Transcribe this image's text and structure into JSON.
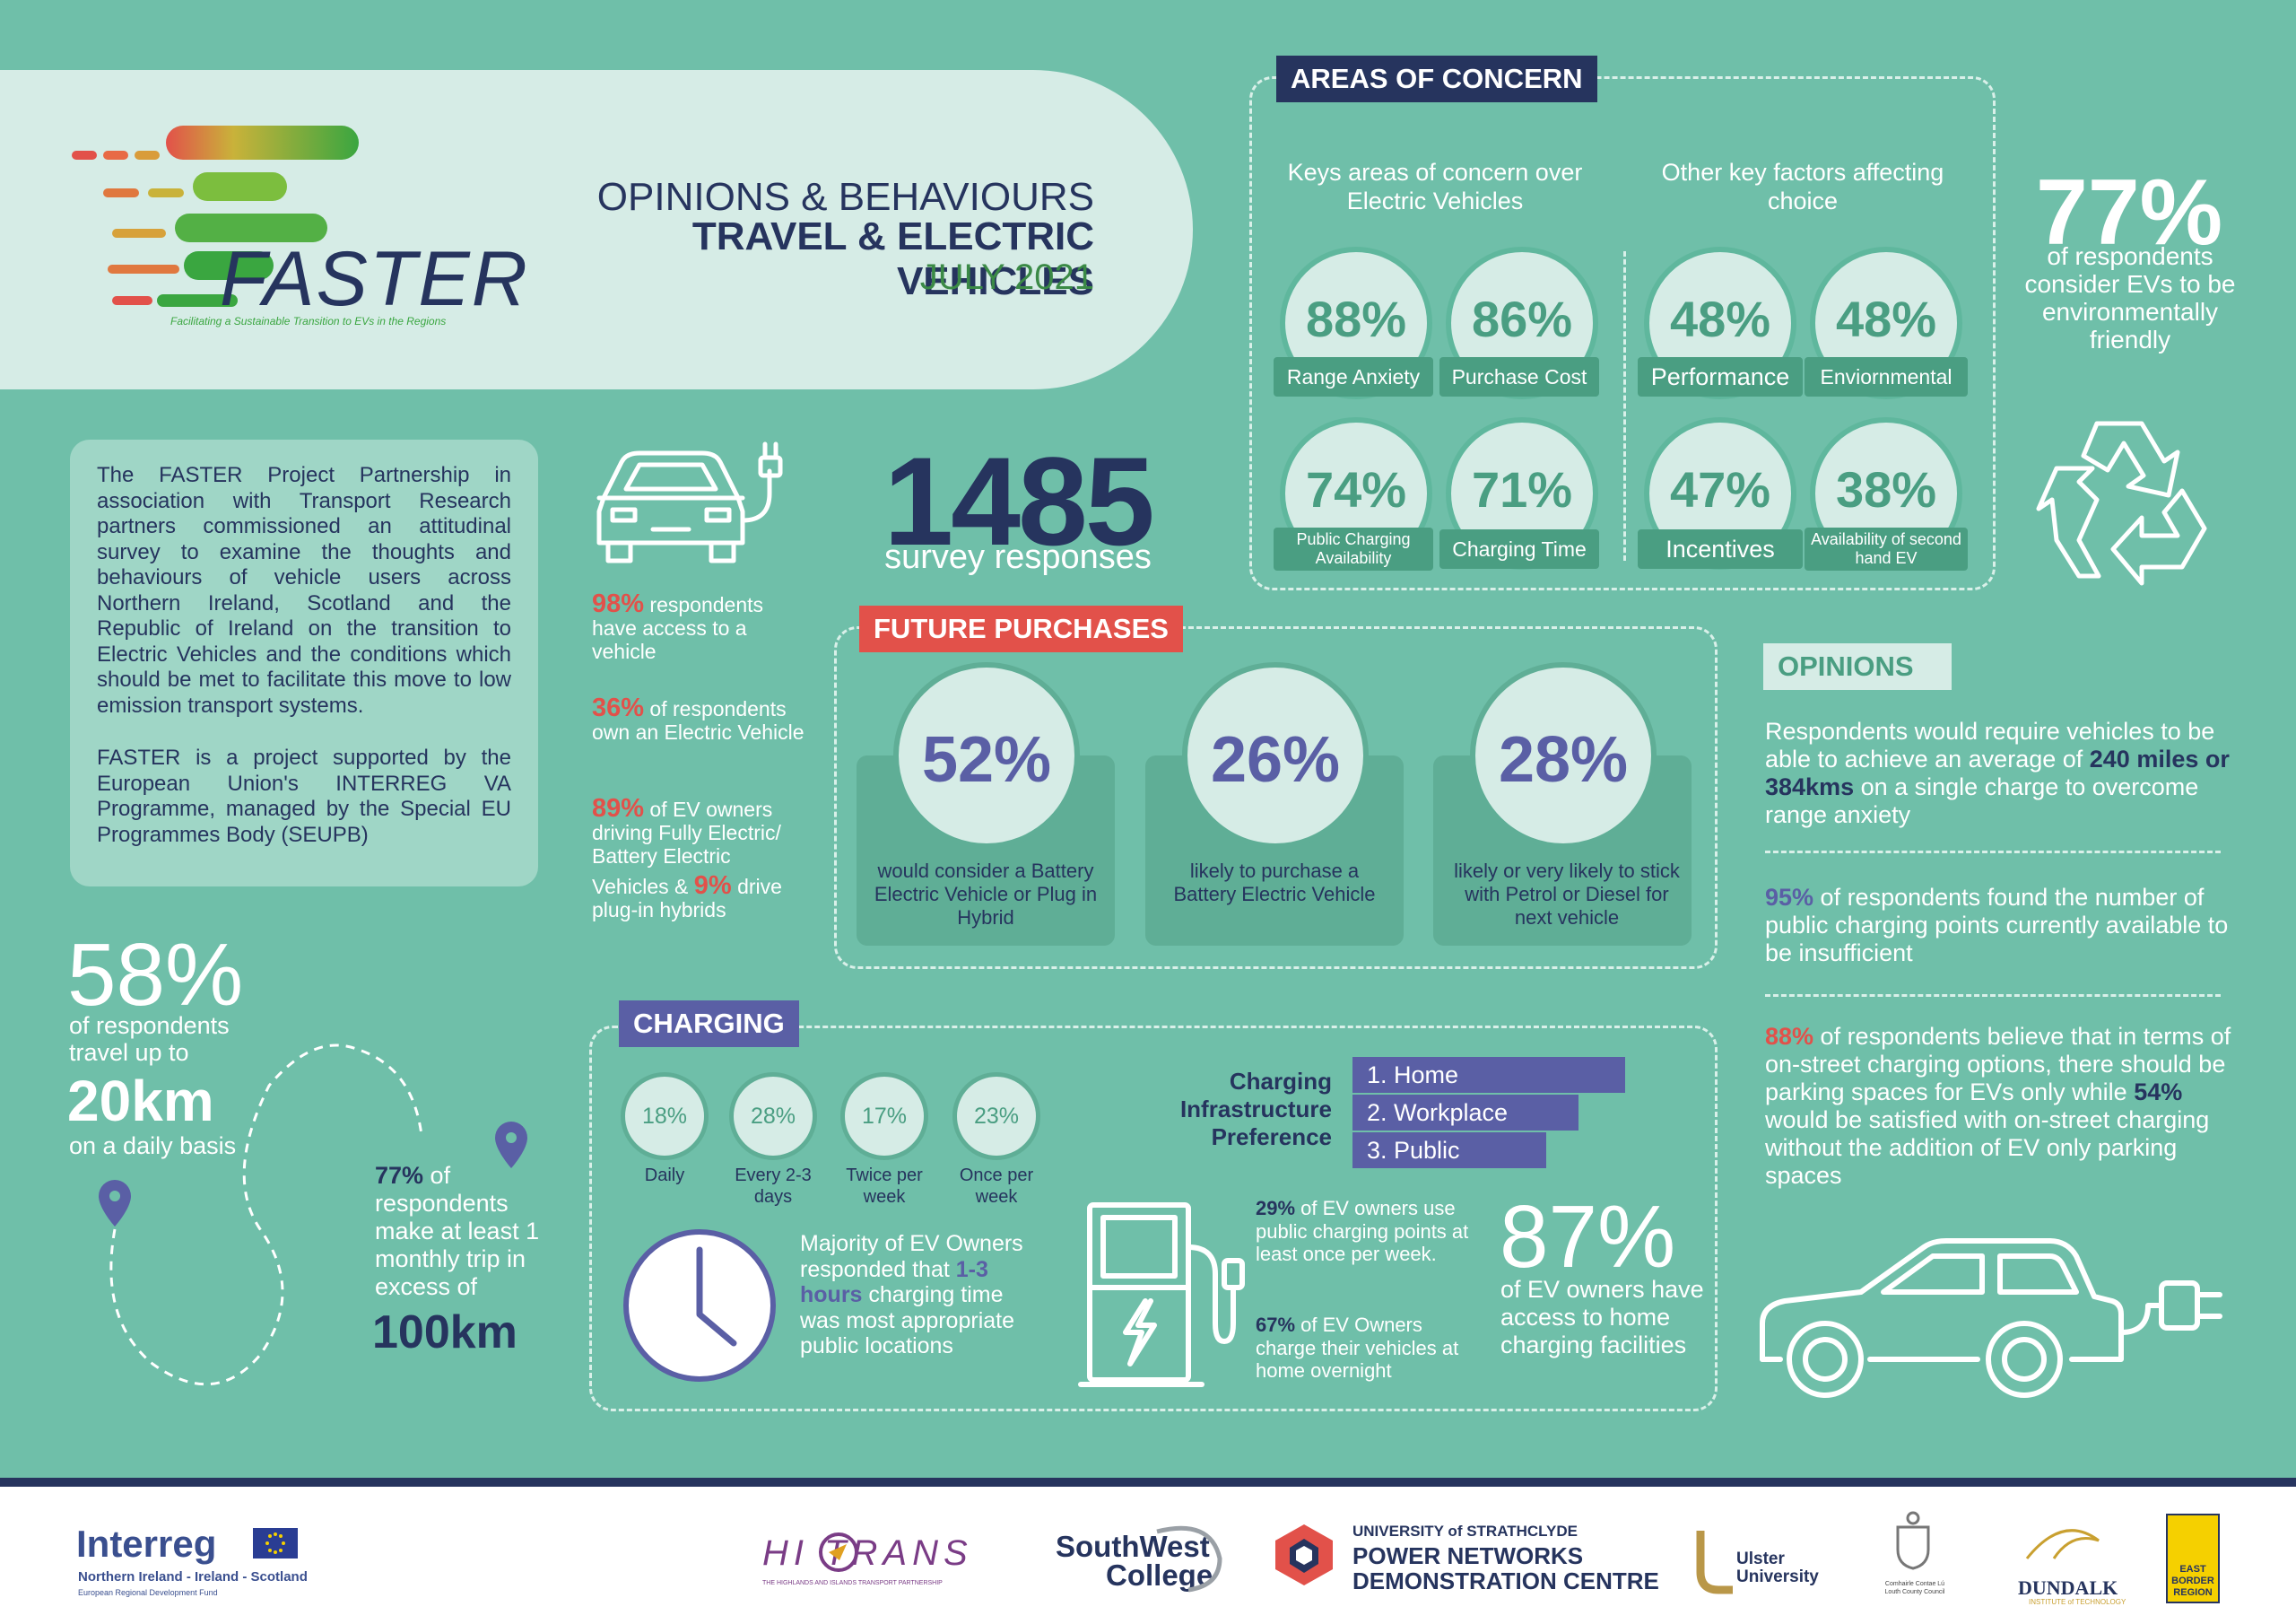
{
  "header": {
    "logo_text": "FASTER",
    "logo_tagline": "Facilitating a Sustainable Transition to EVs in the Regions",
    "title_line1": "OPINIONS & BEHAVIOURS",
    "title_line2": "TRAVEL & ELECTRIC VEHICLES",
    "title_line3": "JULY 2021"
  },
  "intro": {
    "para1": "The FASTER Project Partnership in association with Transport Research partners commissioned an attitudinal survey to examine the thoughts and behaviours of vehicle users across Northern Ireland, Scotland and the Republic of Ireland on the transition to Electric Vehicles and the conditions which should be met to facilitate this move to low emission transport systems.",
    "para2": "FASTER is a project supported by the European Union's INTERREG VA Programme, managed by the Special EU Programmes Body (SEUPB)"
  },
  "concern": {
    "label": "AREAS OF CONCERN",
    "left_heading": "Keys areas of concern over Electric Vehicles",
    "right_heading": "Other key factors affecting choice",
    "items": [
      {
        "pct": "88%",
        "caption": "Range Anxiety"
      },
      {
        "pct": "86%",
        "caption": "Purchase Cost"
      },
      {
        "pct": "48%",
        "caption": "Performance"
      },
      {
        "pct": "48%",
        "caption": "Enviornmental"
      },
      {
        "pct": "74%",
        "caption": "Public Charging Availability"
      },
      {
        "pct": "71%",
        "caption": "Charging Time"
      },
      {
        "pct": "47%",
        "caption": "Incentives"
      },
      {
        "pct": "38%",
        "caption": "Availability of second hand EV"
      }
    ]
  },
  "env": {
    "pct": "77%",
    "text": "of respondents consider EVs to be environmentally friendly"
  },
  "stats": {
    "s1_pct": "98%",
    "s1_text": " respondents have access to a vehicle",
    "s2_pct": "36%",
    "s2_text": " of respondents own an Electric Vehicle",
    "s3_pct": "89%",
    "s3_text": " of EV owners driving Fully Electric/ Battery Electric",
    "s3b_pre": "Vehicles & ",
    "s3b_pct": "9%",
    "s3b_text": " drive plug-in hybrids"
  },
  "survey": {
    "number": "1485",
    "label": "survey responses"
  },
  "future": {
    "label": "FUTURE PURCHASES",
    "items": [
      {
        "pct": "52%",
        "text": "would consider a Battery Electric Vehicle or Plug in Hybrid"
      },
      {
        "pct": "26%",
        "text": "likely to purchase a Battery Electric Vehicle"
      },
      {
        "pct": "28%",
        "text": "likely or very likely to stick with Petrol or Diesel for next vehicle"
      }
    ]
  },
  "opinions": {
    "label": "OPINIONS",
    "o1_pre": "Respondents would require vehicles to be able to achieve an average of ",
    "o1_bold": "240 miles or 384kms",
    "o1_post": " on a single charge to overcome range anxiety",
    "o2_pct": "95%",
    "o2_text": " of respondents found the number of public charging points currently available to be insufficient",
    "o3_pct": "88%",
    "o3_text": " of respondents believe that in terms of on-street charging options, there should be parking spaces for EVs only while ",
    "o3_pct2": "54%",
    "o3_post": " would be satisfied with on-street charging without the addition of EV only parking spaces"
  },
  "travel": {
    "pct": "58%",
    "text": "of respondents travel up to",
    "distance": "20km",
    "suffix": "on a daily basis",
    "trip_pct": "77%",
    "trip_text": " of respondents make at least 1 monthly trip in excess of",
    "trip_distance": "100km"
  },
  "charging": {
    "label": "CHARGING",
    "freq": [
      {
        "pct": "18%",
        "label": "Daily"
      },
      {
        "pct": "28%",
        "label": "Every 2-3 days"
      },
      {
        "pct": "17%",
        "label": "Twice per week"
      },
      {
        "pct": "23%",
        "label": "Once per week"
      }
    ],
    "pref_title": "Charging Infrastructure Preference",
    "prefs": [
      "1. Home",
      "2. Workplace",
      "3. Public"
    ],
    "pref_fraction": [
      1.0,
      0.83,
      0.71
    ],
    "clock_pre": "Majority of EV Owners responded that ",
    "clock_bold": "1-3 hours",
    "clock_post": " charging time was most appropriate public locations",
    "pub_pct": "29%",
    "pub_text": " of EV owners use public charging points at least once per week.",
    "home_pct": "67%",
    "home_text": " of EV Owners charge their vehicles at home overnight",
    "access_pct": "87%",
    "access_text": "of EV owners have access to home charging facilities"
  },
  "footer": {
    "interreg": "Interreg",
    "interreg_sub": "Northern Ireland - Ireland - Scotland",
    "interreg_fund": "European Regional Development Fund",
    "hitrans": "HI  TRANS",
    "hitrans_sub": "THE HIGHLANDS AND ISLANDS TRANSPORT PARTNERSHIP",
    "swc_1": "SouthWest",
    "swc_2": "College",
    "strath_1": "UNIVERSITY of STRATHCLYDE",
    "strath_2": "POWER NETWORKS",
    "strath_3": "DEMONSTRATION CENTRE",
    "ulster_1": "Ulster",
    "ulster_2": "University",
    "louth": "Comhairle Contae Lú Louth County Council",
    "dundalk": "DUNDALK",
    "dundalk_sub": "INSTITUTE of TECHNOLOGY",
    "ebr_1": "EAST",
    "ebr_2": "BORDER",
    "ebr_3": "REGION"
  },
  "colors": {
    "bg": "#6fbfa9",
    "navy": "#26345e",
    "red": "#e2514a",
    "purple": "#5a5fa5",
    "dark_green": "#4a9e82"
  }
}
